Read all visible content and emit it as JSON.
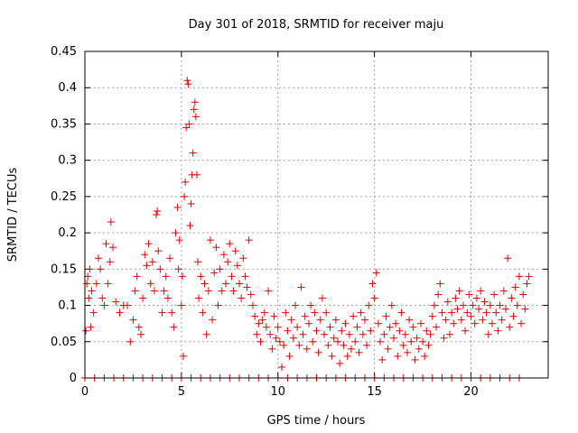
{
  "chart_data": {
    "type": "scatter",
    "title": "Day 301 of 2018, SRMTID for receiver maju",
    "xlabel": "GPS time / hours",
    "ylabel": "SRMTID / TECUs",
    "xlim": [
      0,
      24
    ],
    "ylim": [
      0,
      0.45
    ],
    "xticks": [
      "0",
      "5",
      "10",
      "15",
      "20"
    ],
    "xtick_values": [
      0,
      5,
      10,
      15,
      20
    ],
    "yticks": [
      "0",
      "0.05",
      "0.1",
      "0.15",
      "0.2",
      "0.25",
      "0.3",
      "0.35",
      "0.4",
      "0.45"
    ],
    "ytick_values": [
      0,
      0.05,
      0.1,
      0.15,
      0.2,
      0.25,
      0.3,
      0.35,
      0.4,
      0.45
    ],
    "grid": true,
    "marker": "+",
    "color": "#e00000",
    "series": [
      {
        "name": "SRMTID",
        "points": [
          [
            0.05,
            0.065
          ],
          [
            0.1,
            0.13
          ],
          [
            0.15,
            0.14
          ],
          [
            0.2,
            0.11
          ],
          [
            0.25,
            0.15
          ],
          [
            0.3,
            0.07
          ],
          [
            0.35,
            0.12
          ],
          [
            0.45,
            0.09
          ],
          [
            0.6,
            0.13
          ],
          [
            0.7,
            0.165
          ],
          [
            0.8,
            0.15
          ],
          [
            0.9,
            0.11
          ],
          [
            1.0,
            0.1
          ],
          [
            1.1,
            0.185
          ],
          [
            1.2,
            0.13
          ],
          [
            1.3,
            0.16
          ],
          [
            1.35,
            0.215
          ],
          [
            1.45,
            0.18
          ],
          [
            1.6,
            0.105
          ],
          [
            1.8,
            0.09
          ],
          [
            2.0,
            0.1
          ],
          [
            2.2,
            0.1
          ],
          [
            2.35,
            0.05
          ],
          [
            2.5,
            0.08
          ],
          [
            2.6,
            0.12
          ],
          [
            2.7,
            0.14
          ],
          [
            2.8,
            0.07
          ],
          [
            2.9,
            0.06
          ],
          [
            3.0,
            0.11
          ],
          [
            3.1,
            0.17
          ],
          [
            3.2,
            0.155
          ],
          [
            3.3,
            0.185
          ],
          [
            3.4,
            0.13
          ],
          [
            3.5,
            0.16
          ],
          [
            3.6,
            0.12
          ],
          [
            3.7,
            0.225
          ],
          [
            3.75,
            0.23
          ],
          [
            3.8,
            0.175
          ],
          [
            3.9,
            0.15
          ],
          [
            4.0,
            0.09
          ],
          [
            4.1,
            0.12
          ],
          [
            4.2,
            0.14
          ],
          [
            4.3,
            0.11
          ],
          [
            4.4,
            0.165
          ],
          [
            4.5,
            0.09
          ],
          [
            4.6,
            0.07
          ],
          [
            4.7,
            0.2
          ],
          [
            4.8,
            0.235
          ],
          [
            4.85,
            0.15
          ],
          [
            4.9,
            0.19
          ],
          [
            5.0,
            0.1
          ],
          [
            5.05,
            0.14
          ],
          [
            5.1,
            0.03
          ],
          [
            5.15,
            0.25
          ],
          [
            5.2,
            0.27
          ],
          [
            5.25,
            0.345
          ],
          [
            5.3,
            0.41
          ],
          [
            5.35,
            0.405
          ],
          [
            5.4,
            0.35
          ],
          [
            5.45,
            0.21
          ],
          [
            5.5,
            0.24
          ],
          [
            5.55,
            0.28
          ],
          [
            5.6,
            0.31
          ],
          [
            5.65,
            0.37
          ],
          [
            5.7,
            0.38
          ],
          [
            5.75,
            0.36
          ],
          [
            5.8,
            0.28
          ],
          [
            5.85,
            0.16
          ],
          [
            5.9,
            0.11
          ],
          [
            6.0,
            0.14
          ],
          [
            6.1,
            0.09
          ],
          [
            6.2,
            0.13
          ],
          [
            6.3,
            0.06
          ],
          [
            6.4,
            0.12
          ],
          [
            6.5,
            0.19
          ],
          [
            6.6,
            0.08
          ],
          [
            6.7,
            0.145
          ],
          [
            6.8,
            0.18
          ],
          [
            6.9,
            0.1
          ],
          [
            7.0,
            0.15
          ],
          [
            7.1,
            0.12
          ],
          [
            7.2,
            0.17
          ],
          [
            7.3,
            0.13
          ],
          [
            7.4,
            0.16
          ],
          [
            7.5,
            0.185
          ],
          [
            7.6,
            0.14
          ],
          [
            7.7,
            0.12
          ],
          [
            7.8,
            0.175
          ],
          [
            7.9,
            0.155
          ],
          [
            8.0,
            0.13
          ],
          [
            8.1,
            0.11
          ],
          [
            8.2,
            0.165
          ],
          [
            8.3,
            0.14
          ],
          [
            8.4,
            0.125
          ],
          [
            8.5,
            0.19
          ],
          [
            8.6,
            0.115
          ],
          [
            8.7,
            0.1
          ],
          [
            8.8,
            0.085
          ],
          [
            8.9,
            0.06
          ],
          [
            9.0,
            0.075
          ],
          [
            9.1,
            0.05
          ],
          [
            9.2,
            0.08
          ],
          [
            9.3,
            0.09
          ],
          [
            9.4,
            0.07
          ],
          [
            9.5,
            0.12
          ],
          [
            9.6,
            0.06
          ],
          [
            9.7,
            0.04
          ],
          [
            9.8,
            0.085
          ],
          [
            9.9,
            0.055
          ],
          [
            10.0,
            0.07
          ],
          [
            10.1,
            0.05
          ],
          [
            10.2,
            0.015
          ],
          [
            10.3,
            0.045
          ],
          [
            10.4,
            0.09
          ],
          [
            10.5,
            0.065
          ],
          [
            10.6,
            0.03
          ],
          [
            10.7,
            0.08
          ],
          [
            10.8,
            0.055
          ],
          [
            10.9,
            0.1
          ],
          [
            11.0,
            0.07
          ],
          [
            11.1,
            0.045
          ],
          [
            11.2,
            0.125
          ],
          [
            11.3,
            0.06
          ],
          [
            11.4,
            0.085
          ],
          [
            11.5,
            0.04
          ],
          [
            11.6,
            0.075
          ],
          [
            11.7,
            0.1
          ],
          [
            11.8,
            0.05
          ],
          [
            11.9,
            0.09
          ],
          [
            12.0,
            0.065
          ],
          [
            12.1,
            0.035
          ],
          [
            12.2,
            0.08
          ],
          [
            12.3,
            0.11
          ],
          [
            12.4,
            0.06
          ],
          [
            12.5,
            0.09
          ],
          [
            12.6,
            0.045
          ],
          [
            12.7,
            0.07
          ],
          [
            12.8,
            0.03
          ],
          [
            12.9,
            0.055
          ],
          [
            13.0,
            0.08
          ],
          [
            13.1,
            0.05
          ],
          [
            13.2,
            0.02
          ],
          [
            13.3,
            0.065
          ],
          [
            13.4,
            0.045
          ],
          [
            13.5,
            0.075
          ],
          [
            13.6,
            0.03
          ],
          [
            13.7,
            0.06
          ],
          [
            13.8,
            0.04
          ],
          [
            13.9,
            0.085
          ],
          [
            14.0,
            0.05
          ],
          [
            14.1,
            0.07
          ],
          [
            14.2,
            0.035
          ],
          [
            14.3,
            0.09
          ],
          [
            14.4,
            0.06
          ],
          [
            14.5,
            0.08
          ],
          [
            14.6,
            0.045
          ],
          [
            14.7,
            0.1
          ],
          [
            14.8,
            0.065
          ],
          [
            14.9,
            0.13
          ],
          [
            15.0,
            0.11
          ],
          [
            15.1,
            0.145
          ],
          [
            15.2,
            0.075
          ],
          [
            15.3,
            0.05
          ],
          [
            15.4,
            0.025
          ],
          [
            15.5,
            0.06
          ],
          [
            15.6,
            0.085
          ],
          [
            15.7,
            0.04
          ],
          [
            15.8,
            0.07
          ],
          [
            15.9,
            0.1
          ],
          [
            16.0,
            0.055
          ],
          [
            16.1,
            0.075
          ],
          [
            16.2,
            0.03
          ],
          [
            16.3,
            0.065
          ],
          [
            16.4,
            0.09
          ],
          [
            16.5,
            0.045
          ],
          [
            16.6,
            0.06
          ],
          [
            16.7,
            0.035
          ],
          [
            16.8,
            0.08
          ],
          [
            16.9,
            0.05
          ],
          [
            17.0,
            0.07
          ],
          [
            17.1,
            0.025
          ],
          [
            17.2,
            0.055
          ],
          [
            17.3,
            0.04
          ],
          [
            17.4,
            0.075
          ],
          [
            17.5,
            0.05
          ],
          [
            17.6,
            0.03
          ],
          [
            17.7,
            0.065
          ],
          [
            17.8,
            0.045
          ],
          [
            17.9,
            0.06
          ],
          [
            18.0,
            0.085
          ],
          [
            18.1,
            0.1
          ],
          [
            18.2,
            0.07
          ],
          [
            18.3,
            0.115
          ],
          [
            18.4,
            0.13
          ],
          [
            18.5,
            0.09
          ],
          [
            18.6,
            0.055
          ],
          [
            18.7,
            0.08
          ],
          [
            18.8,
            0.105
          ],
          [
            18.9,
            0.06
          ],
          [
            19.0,
            0.09
          ],
          [
            19.1,
            0.075
          ],
          [
            19.2,
            0.11
          ],
          [
            19.3,
            0.095
          ],
          [
            19.4,
            0.12
          ],
          [
            19.5,
            0.08
          ],
          [
            19.6,
            0.1
          ],
          [
            19.7,
            0.065
          ],
          [
            19.8,
            0.09
          ],
          [
            19.9,
            0.115
          ],
          [
            20.0,
            0.085
          ],
          [
            20.1,
            0.1
          ],
          [
            20.2,
            0.075
          ],
          [
            20.3,
            0.11
          ],
          [
            20.4,
            0.095
          ],
          [
            20.5,
            0.12
          ],
          [
            20.6,
            0.08
          ],
          [
            20.7,
            0.105
          ],
          [
            20.8,
            0.09
          ],
          [
            20.9,
            0.06
          ],
          [
            21.0,
            0.1
          ],
          [
            21.1,
            0.075
          ],
          [
            21.2,
            0.115
          ],
          [
            21.3,
            0.09
          ],
          [
            21.4,
            0.065
          ],
          [
            21.5,
            0.1
          ],
          [
            21.6,
            0.08
          ],
          [
            21.7,
            0.12
          ],
          [
            21.8,
            0.095
          ],
          [
            21.9,
            0.165
          ],
          [
            22.0,
            0.07
          ],
          [
            22.1,
            0.11
          ],
          [
            22.2,
            0.085
          ],
          [
            22.3,
            0.125
          ],
          [
            22.4,
            0.1
          ],
          [
            22.5,
            0.14
          ],
          [
            22.6,
            0.075
          ],
          [
            22.7,
            0.115
          ],
          [
            22.8,
            0.095
          ],
          [
            22.9,
            0.13
          ],
          [
            23.0,
            0.14
          ]
        ],
        "zero_markers": [
          0.0,
          0.5,
          1.0,
          1.5,
          2.0,
          2.5,
          3.0,
          3.5,
          4.0,
          4.5,
          5.0,
          5.5,
          6.0,
          6.5,
          7.0,
          7.5,
          8.0,
          8.5,
          9.0,
          9.5,
          10.0,
          10.5,
          11.0,
          11.5,
          12.0,
          12.5,
          13.0,
          13.5,
          14.0,
          14.5,
          15.0,
          15.5,
          16.0,
          16.5,
          17.0,
          17.5,
          18.0,
          18.5,
          19.0,
          19.5,
          20.0,
          20.5,
          21.0,
          21.5,
          22.0,
          22.5
        ]
      }
    ]
  }
}
